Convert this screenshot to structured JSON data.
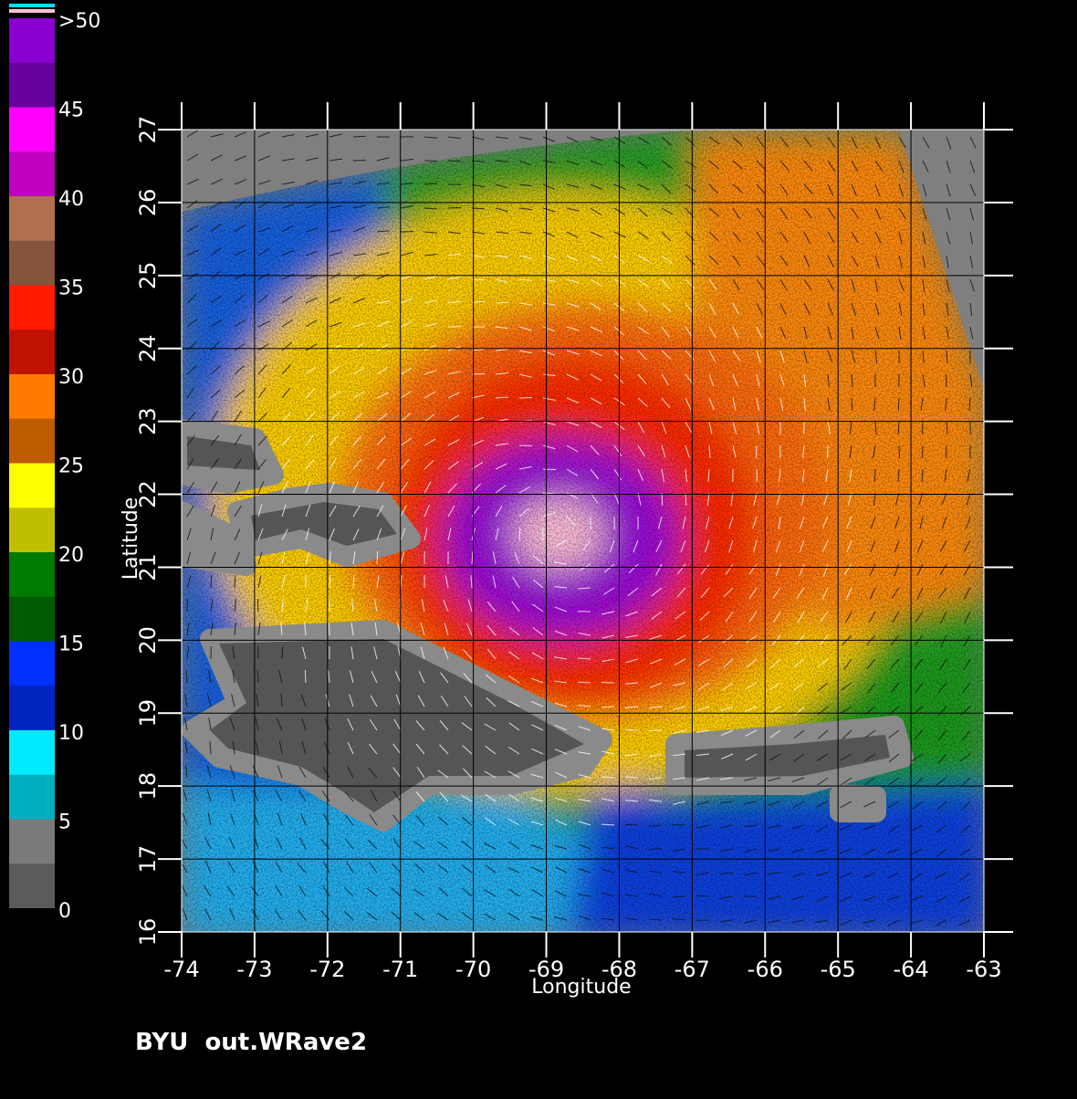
{
  "map": {
    "xlabel": "Longitude",
    "ylabel": "Latitude",
    "xlim": [
      -74,
      -63
    ],
    "ylim": [
      16,
      27
    ],
    "xticks": [
      -74,
      -73,
      -72,
      -71,
      -70,
      -69,
      -68,
      -67,
      -66,
      -65,
      -64,
      -63
    ],
    "yticks": [
      16,
      17,
      18,
      19,
      20,
      21,
      22,
      23,
      24,
      25,
      26,
      27
    ],
    "footer": "BYU  out.WRave2",
    "colorbar": {
      "ticks": [
        0,
        5,
        10,
        15,
        20,
        25,
        30,
        35,
        40,
        45,
        {
          "value": 50,
          "label": ">50"
        }
      ],
      "colors": [
        "#7a7a7a",
        "#00eaff",
        "#0030ff",
        "#007a00",
        "#ffff00",
        "#ff7a00",
        "#ff1a00",
        "#b07050",
        "#ff00ff",
        "#8a00d0"
      ]
    }
  }
}
